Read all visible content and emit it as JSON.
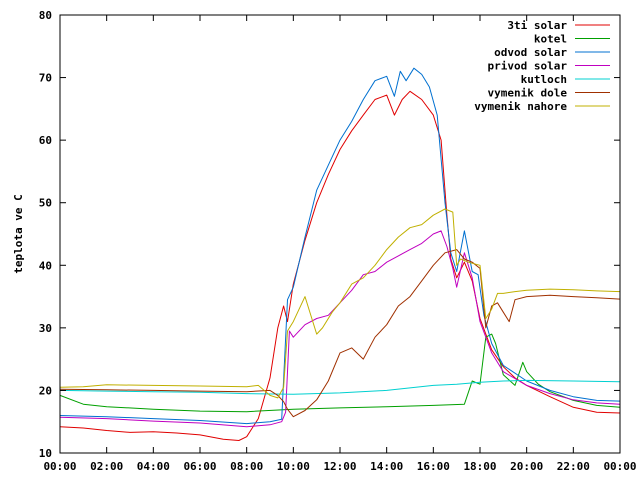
{
  "chart_data": {
    "type": "line",
    "title": "",
    "xlabel": "",
    "ylabel": "teplota ve C",
    "ylim": [
      10,
      80
    ],
    "xlim": [
      "00:00",
      "24:00"
    ],
    "grid": false,
    "legend_position": "top-right",
    "x_ticks": [
      "00:00",
      "02:00",
      "04:00",
      "06:00",
      "08:00",
      "10:00",
      "12:00",
      "14:00",
      "16:00",
      "18:00",
      "20:00",
      "22:00",
      "00:00"
    ],
    "y_ticks": [
      "10",
      "20",
      "30",
      "40",
      "50",
      "60",
      "70",
      "80"
    ],
    "series": [
      {
        "name": "3ti solar",
        "color": "#e00000",
        "x": [
          "00:00",
          "01:00",
          "02:00",
          "03:00",
          "04:00",
          "05:00",
          "06:00",
          "07:00",
          "07:40",
          "08:00",
          "08:30",
          "09:00",
          "09:20",
          "09:35",
          "09:45",
          "10:00",
          "10:30",
          "11:00",
          "11:30",
          "12:00",
          "12:30",
          "13:00",
          "13:30",
          "14:00",
          "14:20",
          "14:40",
          "15:00",
          "15:30",
          "16:00",
          "16:20",
          "16:35",
          "16:45",
          "17:00",
          "17:20",
          "17:40",
          "18:00",
          "18:30",
          "19:00",
          "19:30",
          "20:00",
          "21:00",
          "22:00",
          "23:00",
          "24:00"
        ],
        "y": [
          14.2,
          14.0,
          13.6,
          13.3,
          13.4,
          13.2,
          12.9,
          12.2,
          12.0,
          12.6,
          15.5,
          22.0,
          30.0,
          33.5,
          31.0,
          37.0,
          44.0,
          50.0,
          54.5,
          58.5,
          61.5,
          64.0,
          66.5,
          67.2,
          64.0,
          66.5,
          67.8,
          66.5,
          64.0,
          60.0,
          48.0,
          41.0,
          38.0,
          40.5,
          37.5,
          31.5,
          26.5,
          23.8,
          22.0,
          20.8,
          19.0,
          17.3,
          16.5,
          16.4
        ]
      },
      {
        "name": "kotel",
        "color": "#00a000",
        "x": [
          "00:00",
          "01:00",
          "02:00",
          "04:00",
          "06:00",
          "08:00",
          "10:00",
          "12:00",
          "14:00",
          "16:00",
          "17:20",
          "17:40",
          "18:00",
          "18:15",
          "18:30",
          "18:40",
          "19:00",
          "19:30",
          "19:50",
          "20:00",
          "20:30",
          "21:00",
          "22:00",
          "23:00",
          "24:00"
        ],
        "y": [
          19.2,
          17.8,
          17.4,
          17.0,
          16.7,
          16.6,
          17.0,
          17.2,
          17.4,
          17.6,
          17.8,
          21.5,
          21.0,
          28.5,
          29.0,
          27.5,
          22.5,
          20.8,
          24.5,
          23.0,
          21.0,
          19.8,
          18.4,
          17.6,
          17.3
        ]
      },
      {
        "name": "odvod solar",
        "color": "#0070d0",
        "x": [
          "00:00",
          "02:00",
          "04:00",
          "06:00",
          "08:00",
          "09:00",
          "09:30",
          "09:45",
          "10:00",
          "10:30",
          "11:00",
          "11:30",
          "12:00",
          "12:30",
          "13:00",
          "13:30",
          "14:00",
          "14:20",
          "14:35",
          "14:50",
          "15:10",
          "15:30",
          "15:50",
          "16:10",
          "16:30",
          "16:45",
          "17:00",
          "17:20",
          "17:40",
          "17:55",
          "18:10",
          "18:30",
          "19:00",
          "20:00",
          "21:00",
          "22:00",
          "23:00",
          "24:00"
        ],
        "y": [
          16.0,
          15.8,
          15.5,
          15.2,
          14.7,
          15.0,
          15.4,
          34.5,
          36.5,
          44.5,
          52.0,
          56.0,
          60.0,
          63.0,
          66.5,
          69.5,
          70.2,
          67.0,
          71.0,
          69.5,
          71.5,
          70.5,
          68.5,
          64.0,
          50.0,
          42.0,
          39.0,
          45.5,
          39.0,
          38.5,
          32.0,
          27.5,
          24.0,
          21.5,
          20.0,
          19.0,
          18.4,
          18.3
        ]
      },
      {
        "name": "privod solar",
        "color": "#c000c0",
        "x": [
          "00:00",
          "02:00",
          "04:00",
          "06:00",
          "08:00",
          "09:00",
          "09:30",
          "09:40",
          "09:50",
          "10:00",
          "10:30",
          "11:00",
          "11:30",
          "12:00",
          "12:30",
          "13:00",
          "13:30",
          "14:00",
          "14:30",
          "15:00",
          "15:30",
          "16:00",
          "16:20",
          "16:35",
          "16:50",
          "17:00",
          "17:20",
          "17:40",
          "18:00",
          "18:30",
          "19:00",
          "20:00",
          "21:00",
          "22:00",
          "23:00",
          "24:00"
        ],
        "y": [
          15.7,
          15.5,
          15.1,
          14.8,
          14.2,
          14.5,
          15.0,
          16.5,
          29.5,
          28.5,
          30.5,
          31.5,
          32.0,
          34.0,
          36.0,
          38.5,
          39.0,
          40.5,
          41.5,
          42.5,
          43.5,
          45.0,
          45.5,
          43.0,
          39.5,
          36.5,
          42.0,
          38.0,
          31.0,
          26.0,
          23.0,
          20.8,
          19.5,
          18.5,
          18.0,
          17.8
        ]
      },
      {
        "name": "kutloch",
        "color": "#00d0d0",
        "x": [
          "00:00",
          "02:00",
          "04:00",
          "06:00",
          "08:00",
          "10:00",
          "12:00",
          "14:00",
          "16:00",
          "17:00",
          "18:00",
          "19:00",
          "20:00",
          "22:00",
          "24:00"
        ],
        "y": [
          20.0,
          19.9,
          19.8,
          19.7,
          19.5,
          19.4,
          19.6,
          20.0,
          20.8,
          21.0,
          21.3,
          21.5,
          21.6,
          21.5,
          21.4
        ]
      },
      {
        "name": "vymenik dole",
        "color": "#a03000",
        "x": [
          "00:00",
          "02:00",
          "04:00",
          "06:00",
          "08:00",
          "09:00",
          "09:20",
          "09:35",
          "09:45",
          "10:00",
          "10:30",
          "11:00",
          "11:30",
          "12:00",
          "12:30",
          "13:00",
          "13:30",
          "14:00",
          "14:30",
          "15:00",
          "15:30",
          "16:00",
          "16:30",
          "17:00",
          "17:20",
          "17:40",
          "18:00",
          "18:15",
          "18:30",
          "18:45",
          "19:00",
          "19:15",
          "19:30",
          "20:00",
          "21:00",
          "22:00",
          "23:00",
          "24:00"
        ],
        "y": [
          20.2,
          20.1,
          20.0,
          19.9,
          19.8,
          20.0,
          19.2,
          18.2,
          17.0,
          15.8,
          16.8,
          18.5,
          21.5,
          26.0,
          26.8,
          25.0,
          28.5,
          30.5,
          33.5,
          35.0,
          37.5,
          40.0,
          42.0,
          42.5,
          41.0,
          40.5,
          39.5,
          30.0,
          33.5,
          34.0,
          32.5,
          31.0,
          34.5,
          35.0,
          35.2,
          35.0,
          34.8,
          34.6
        ]
      },
      {
        "name": "vymenik nahore",
        "color": "#c0b000",
        "x": [
          "00:00",
          "01:00",
          "02:00",
          "04:00",
          "06:00",
          "08:00",
          "08:30",
          "09:00",
          "09:20",
          "09:35",
          "09:45",
          "10:00",
          "10:30",
          "11:00",
          "11:15",
          "11:40",
          "12:00",
          "12:30",
          "13:00",
          "13:30",
          "14:00",
          "14:30",
          "15:00",
          "15:30",
          "16:00",
          "16:30",
          "16:50",
          "17:00",
          "17:10",
          "17:30",
          "18:00",
          "18:15",
          "18:30",
          "18:45",
          "19:00",
          "19:30",
          "20:00",
          "21:00",
          "22:00",
          "23:00",
          "24:00"
        ],
        "y": [
          20.5,
          20.6,
          20.9,
          20.8,
          20.7,
          20.6,
          20.8,
          19.2,
          18.8,
          20.5,
          29.5,
          31.0,
          35.0,
          29.0,
          30.0,
          32.5,
          34.0,
          37.0,
          38.0,
          40.0,
          42.5,
          44.5,
          46.0,
          46.5,
          48.0,
          49.0,
          48.5,
          40.0,
          41.0,
          40.5,
          40.0,
          31.5,
          33.0,
          35.5,
          35.5,
          35.8,
          36.0,
          36.2,
          36.1,
          35.9,
          35.8
        ]
      }
    ]
  }
}
